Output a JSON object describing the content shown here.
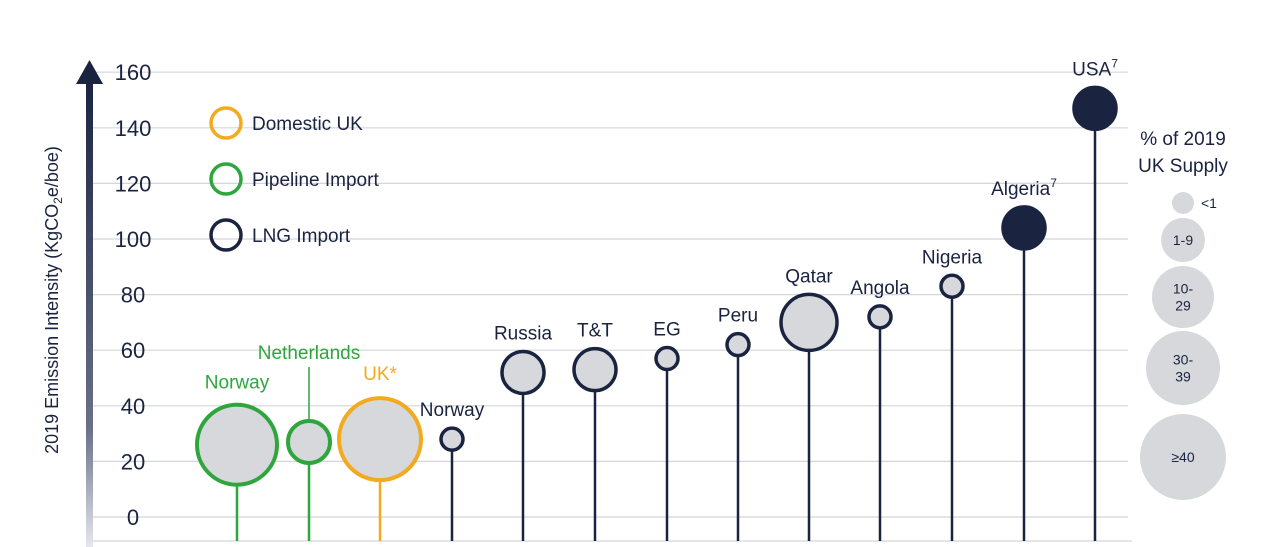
{
  "chart_data": {
    "type": "scatter",
    "ylabel": "2019 Emission Intensity (KgCO",
    "ylabel_sub": "2",
    "ylabel_tail": "e/boe)",
    "ylim": [
      0,
      160
    ],
    "yticks": [
      "0",
      "20",
      "40",
      "60",
      "80",
      "100",
      "120",
      "140",
      "160"
    ],
    "legend": [
      {
        "name": "Domestic UK",
        "color": "#f2aa1f"
      },
      {
        "name": "Pipeline Import",
        "color": "#2fa63c"
      },
      {
        "name": "LNG Import",
        "color": "#1a2340"
      }
    ],
    "points": [
      {
        "label": "Norway",
        "sup": "",
        "category": "Pipeline Import",
        "y": 26,
        "supply": "≥40",
        "color": "#2fa63c",
        "filled": false
      },
      {
        "label": "Netherlands",
        "sup": "",
        "category": "Pipeline Import",
        "y": 27,
        "supply": "1-9",
        "color": "#2fa63c",
        "filled": false
      },
      {
        "label": "UK*",
        "sup": "",
        "category": "Domestic UK",
        "y": 28,
        "supply": "≥40",
        "color": "#f2aa1f",
        "filled": false
      },
      {
        "label": "Norway",
        "sup": "",
        "category": "LNG Import",
        "y": 28,
        "supply": "<1",
        "color": "#1a2340",
        "filled": false
      },
      {
        "label": "Russia",
        "sup": "",
        "category": "LNG Import",
        "y": 52,
        "supply": "1-9",
        "color": "#1a2340",
        "filled": false
      },
      {
        "label": "T&T",
        "sup": "",
        "category": "LNG Import",
        "y": 53,
        "supply": "1-9",
        "color": "#1a2340",
        "filled": false
      },
      {
        "label": "EG",
        "sup": "",
        "category": "LNG Import",
        "y": 57,
        "supply": "<1",
        "color": "#1a2340",
        "filled": false
      },
      {
        "label": "Peru",
        "sup": "",
        "category": "LNG Import",
        "y": 62,
        "supply": "<1",
        "color": "#1a2340",
        "filled": false
      },
      {
        "label": "Qatar",
        "sup": "",
        "category": "LNG Import",
        "y": 70,
        "supply": "10-29",
        "color": "#1a2340",
        "filled": false
      },
      {
        "label": "Angola",
        "sup": "",
        "category": "LNG Import",
        "y": 72,
        "supply": "<1",
        "color": "#1a2340",
        "filled": false
      },
      {
        "label": "Nigeria",
        "sup": "",
        "category": "LNG Import",
        "y": 83,
        "supply": "<1",
        "color": "#1a2340",
        "filled": false
      },
      {
        "label": "Algeria",
        "sup": "7",
        "category": "LNG Import",
        "y": 104,
        "supply": "1-9",
        "color": "#1a2340",
        "filled": true
      },
      {
        "label": "USA",
        "sup": "7",
        "category": "LNG Import",
        "y": 147,
        "supply": "1-9",
        "color": "#1a2340",
        "filled": true
      }
    ],
    "size_legend": {
      "title_line1": "% of 2019",
      "title_line2": "UK Supply",
      "items": [
        {
          "label": "<1",
          "lines": [
            "<1"
          ]
        },
        {
          "label": "1-9",
          "lines": [
            "1-9"
          ]
        },
        {
          "label": "10-29",
          "lines": [
            "10-",
            "29"
          ]
        },
        {
          "label": "30-39",
          "lines": [
            "30-",
            "39"
          ]
        },
        {
          "label": "≥40",
          "lines": [
            "≥40"
          ]
        }
      ]
    },
    "grid": true
  }
}
